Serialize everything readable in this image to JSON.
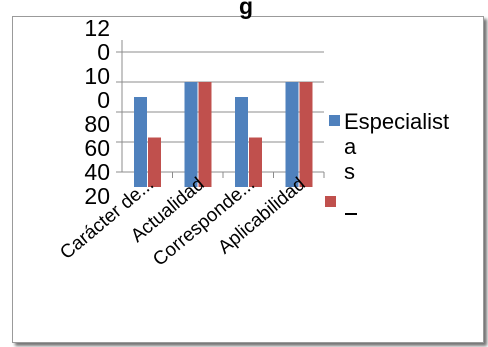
{
  "chart_data": {
    "type": "bar",
    "title_fragment": "g",
    "categories": [
      "Carácter de...",
      "Actualidad",
      "Corresponde...",
      "Aplicabilidad"
    ],
    "series": [
      {
        "name": "Especialista s",
        "color": "#4f81bd",
        "values": [
          90,
          100,
          90,
          100
        ]
      },
      {
        "name": "",
        "color": "#c0504d",
        "values": [
          63,
          100,
          63,
          100
        ]
      }
    ],
    "ylim": [
      40,
      120
    ],
    "tick_labels": [
      "12",
      "0",
      "10",
      "0",
      "80",
      "60",
      "40",
      "20"
    ],
    "legend_lines": [
      "Especialist",
      "a",
      "s"
    ],
    "legend_placement": "right",
    "grid": true
  }
}
